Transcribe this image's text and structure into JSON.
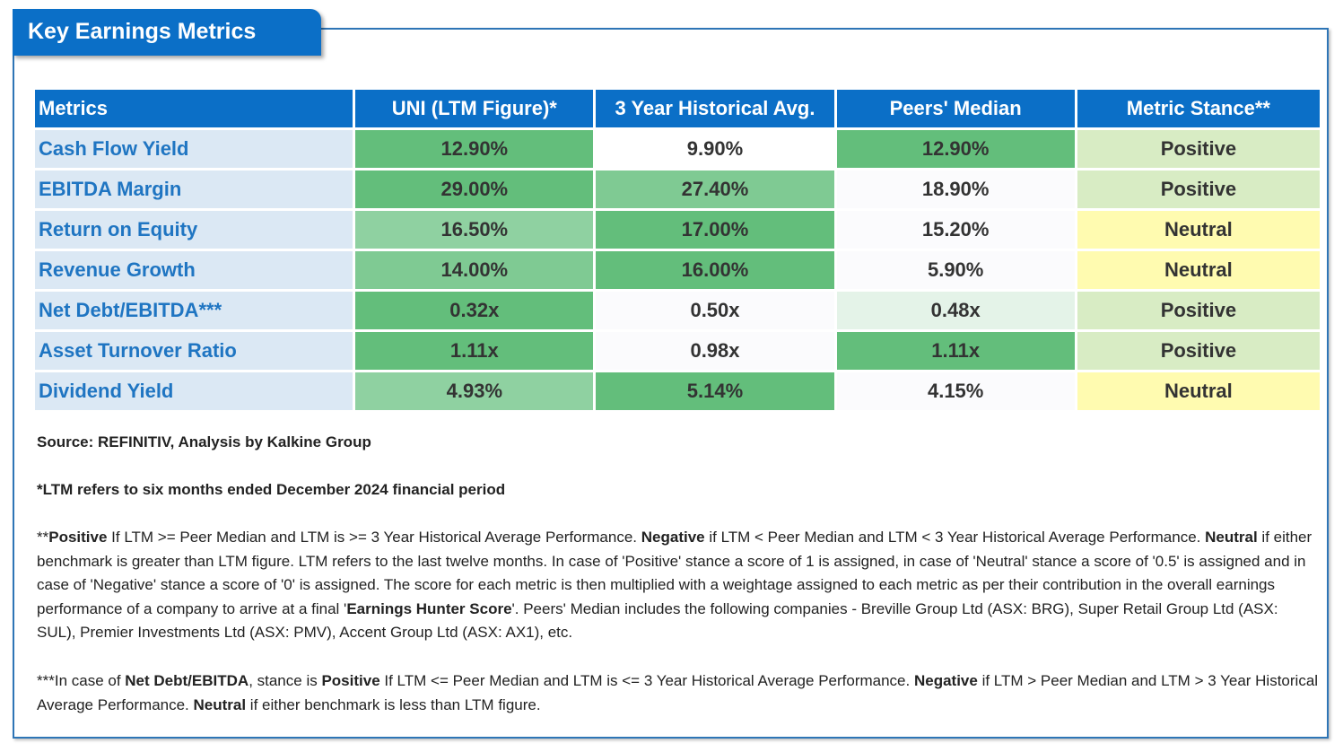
{
  "title": "Key Earnings Metrics",
  "chart_data": {
    "type": "table",
    "columns": [
      "Metrics",
      "UNI (LTM Figure)*",
      "3 Year Historical Avg.",
      "Peers' Median",
      "Metric Stance**"
    ],
    "rows": [
      {
        "metric": "Cash Flow Yield",
        "ltm": "12.90%",
        "hist": "9.90%",
        "peers": "12.90%",
        "stance": "Positive"
      },
      {
        "metric": "EBITDA Margin",
        "ltm": "29.00%",
        "hist": "27.40%",
        "peers": "18.90%",
        "stance": "Positive"
      },
      {
        "metric": "Return on Equity",
        "ltm": "16.50%",
        "hist": "17.00%",
        "peers": "15.20%",
        "stance": "Neutral"
      },
      {
        "metric": "Revenue Growth",
        "ltm": "14.00%",
        "hist": "16.00%",
        "peers": "5.90%",
        "stance": "Neutral"
      },
      {
        "metric": "Net Debt/EBITDA***",
        "ltm": "0.32x",
        "hist": "0.50x",
        "peers": "0.48x",
        "stance": "Positive"
      },
      {
        "metric": "Asset Turnover Ratio",
        "ltm": "1.11x",
        "hist": "0.98x",
        "peers": "1.11x",
        "stance": "Positive"
      },
      {
        "metric": "Dividend Yield",
        "ltm": "4.93%",
        "hist": "5.14%",
        "peers": "4.15%",
        "stance": "Neutral"
      }
    ],
    "cell_colors": [
      [
        "#63be7b",
        "#ffffff",
        "#63be7b",
        "#d8ecc4"
      ],
      [
        "#63be7b",
        "#7fca93",
        "#fbfbfd",
        "#d8ecc4"
      ],
      [
        "#8fd1a1",
        "#63be7b",
        "#fbfbfd",
        "#fffbb0"
      ],
      [
        "#7fca93",
        "#63be7b",
        "#fbfbfd",
        "#fffbb0"
      ],
      [
        "#63be7b",
        "#fbfbfd",
        "#e4f3e8",
        "#d8ecc4"
      ],
      [
        "#63be7b",
        "#fbfbfd",
        "#63be7b",
        "#d8ecc4"
      ],
      [
        "#8fd1a1",
        "#63be7b",
        "#fbfbfd",
        "#fffbb0"
      ]
    ]
  },
  "colors": {
    "header": "#0b6fc7",
    "metric_cell": "#dbe8f4",
    "metric_text": "#1f75c2",
    "positive": "#d8ecc4",
    "neutral": "#fffbb0",
    "green_high": "#63be7b"
  },
  "notes": {
    "source": "Source: REFINITIV, Analysis by Kalkine Group",
    "ltm": "*LTM refers to six months ended December 2024 financial period",
    "stance_p1_prefix": "**",
    "stance_positive": "Positive",
    "stance_p1_a": " If LTM >= Peer Median and LTM is >= 3 Year Historical Average Performance. ",
    "stance_negative": "Negative",
    "stance_p1_b": " if LTM < Peer Median and LTM < 3 Year Historical Average Performance. ",
    "stance_neutral": "Neutral",
    "stance_p1_c": " if either benchmark is greater than LTM figure. LTM refers to the last twelve months. In case of 'Positive' stance a score of 1 is assigned, in case of 'Neutral' stance a score of '0.5' is assigned and in case of 'Negative' stance a score of '0' is assigned. The score for each metric is then multiplied with a weightage assigned to each metric as per their contribution in the overall earnings performance of a company to arrive at a final '",
    "stance_ehs": "Earnings Hunter Score",
    "stance_p1_d": "'. Peers' Median includes the following companies - Breville Group Ltd (ASX: BRG), Super Retail Group Ltd (ASX: SUL), Premier Investments Ltd (ASX: PMV), Accent Group Ltd (ASX: AX1), etc.",
    "nd_prefix": "***In case of ",
    "nd_term": "Net Debt/EBITDA",
    "nd_a": ", stance is ",
    "nd_positive": "Positive",
    "nd_b": " If LTM <= Peer Median and LTM is <= 3 Year Historical Average Performance. ",
    "nd_negative": "Negative",
    "nd_c": " if LTM > Peer Median and LTM > 3 Year Historical Average Performance. ",
    "nd_neutral": "Neutral",
    "nd_d": " if either benchmark is less than LTM figure."
  }
}
